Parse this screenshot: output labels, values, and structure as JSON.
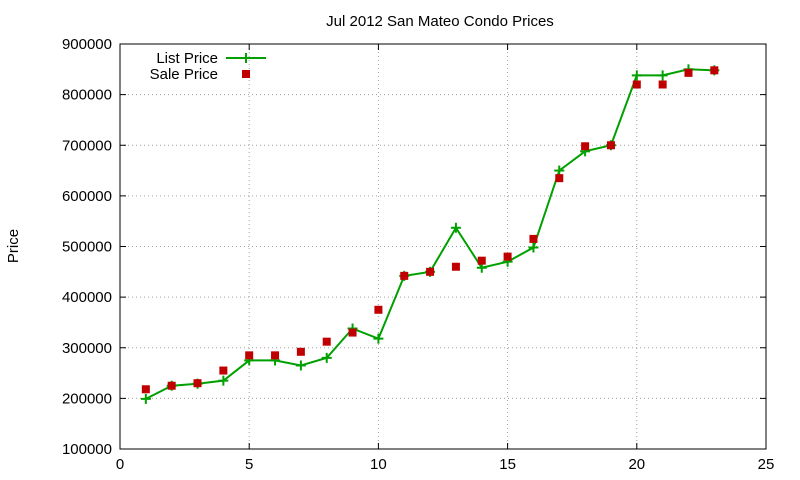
{
  "chart_data": {
    "type": "line",
    "title": "Jul 2012 San Mateo Condo Prices",
    "xlabel": "",
    "ylabel": "Price",
    "xlim": [
      0,
      25
    ],
    "ylim": [
      100000,
      900000
    ],
    "x_ticks": [
      0,
      5,
      10,
      15,
      20,
      25
    ],
    "y_ticks": [
      100000,
      200000,
      300000,
      400000,
      500000,
      600000,
      700000,
      800000,
      900000
    ],
    "x_tick_labels": [
      "0",
      "5",
      "10",
      "15",
      "20",
      "25"
    ],
    "y_tick_labels": [
      "100000",
      "200000",
      "300000",
      "400000",
      "500000",
      "600000",
      "700000",
      "800000",
      "900000"
    ],
    "grid": true,
    "legend_position": "top-left",
    "series": [
      {
        "name": "List Price",
        "style": "line-points",
        "marker": "plus",
        "color": "#00a000",
        "x": [
          1,
          2,
          3,
          4,
          5,
          6,
          7,
          8,
          9,
          10,
          11,
          12,
          13,
          14,
          15,
          16,
          17,
          18,
          19,
          20,
          21,
          22,
          23
        ],
        "values": [
          199000,
          225000,
          229000,
          235000,
          275000,
          275000,
          265000,
          280000,
          338000,
          318000,
          442000,
          450000,
          537000,
          458000,
          470000,
          498000,
          650000,
          688000,
          700000,
          838000,
          838000,
          850000,
          848000
        ]
      },
      {
        "name": "Sale Price",
        "style": "points",
        "marker": "square",
        "color": "#c00000",
        "x": [
          1,
          2,
          3,
          4,
          5,
          6,
          7,
          8,
          9,
          10,
          11,
          12,
          13,
          14,
          15,
          16,
          17,
          18,
          19,
          20,
          21,
          22,
          23
        ],
        "values": [
          218000,
          225000,
          230000,
          255000,
          285000,
          285000,
          292000,
          312000,
          330000,
          375000,
          442000,
          450000,
          460000,
          472000,
          480000,
          515000,
          635000,
          698000,
          700000,
          820000,
          820000,
          843000,
          848000
        ]
      }
    ]
  }
}
